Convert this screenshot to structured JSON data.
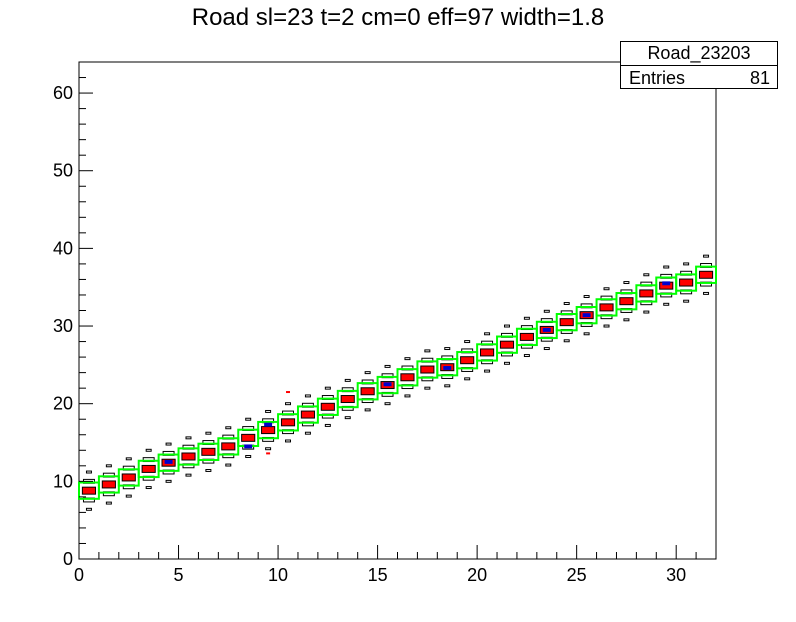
{
  "title": "Road sl=23 t=2 cm=0 eff=97 width=1.8",
  "stats": {
    "name": "Road_23203",
    "entries_label": "Entries",
    "entries_value": "81"
  },
  "chart_data": {
    "type": "heatmap",
    "xlim": [
      0,
      32
    ],
    "ylim": [
      0,
      64
    ],
    "xticks": [
      0,
      5,
      10,
      15,
      20,
      25,
      30
    ],
    "yticks": [
      0,
      10,
      20,
      30,
      40,
      50,
      60
    ],
    "road": [
      {
        "x": 0,
        "y": 8.8
      },
      {
        "x": 1,
        "y": 9.6
      },
      {
        "x": 2,
        "y": 10.5
      },
      {
        "x": 3,
        "y": 11.6
      },
      {
        "x": 4,
        "y": 12.4
      },
      {
        "x": 5,
        "y": 13.2
      },
      {
        "x": 6,
        "y": 13.8
      },
      {
        "x": 7,
        "y": 14.5
      },
      {
        "x": 8,
        "y": 15.6
      },
      {
        "x": 9,
        "y": 16.6
      },
      {
        "x": 10,
        "y": 17.6
      },
      {
        "x": 11,
        "y": 18.6
      },
      {
        "x": 12,
        "y": 19.6
      },
      {
        "x": 13,
        "y": 20.6
      },
      {
        "x": 14,
        "y": 21.6
      },
      {
        "x": 15,
        "y": 22.4
      },
      {
        "x": 16,
        "y": 23.4
      },
      {
        "x": 17,
        "y": 24.4
      },
      {
        "x": 18,
        "y": 24.7
      },
      {
        "x": 19,
        "y": 25.6
      },
      {
        "x": 20,
        "y": 26.6
      },
      {
        "x": 21,
        "y": 27.6
      },
      {
        "x": 22,
        "y": 28.6
      },
      {
        "x": 23,
        "y": 29.5
      },
      {
        "x": 24,
        "y": 30.5
      },
      {
        "x": 25,
        "y": 31.4
      },
      {
        "x": 26,
        "y": 32.4
      },
      {
        "x": 27,
        "y": 33.2
      },
      {
        "x": 28,
        "y": 34.2
      },
      {
        "x": 29,
        "y": 35.2
      },
      {
        "x": 30,
        "y": 35.6
      },
      {
        "x": 31,
        "y": 36.6
      }
    ],
    "hits_blue": [
      {
        "x": 4,
        "y": 12.5
      },
      {
        "x": 8,
        "y": 14.5
      },
      {
        "x": 9,
        "y": 17.3
      },
      {
        "x": 15,
        "y": 22.5
      },
      {
        "x": 18,
        "y": 24.6
      },
      {
        "x": 23,
        "y": 29.5
      },
      {
        "x": 25,
        "y": 31.4
      },
      {
        "x": 29,
        "y": 35.5
      }
    ],
    "outliers": [
      {
        "x": 10,
        "y": 21.5,
        "color": "#ff0000"
      },
      {
        "x": 9,
        "y": 13.6,
        "color": "#ff0000"
      }
    ],
    "colors": {
      "road_outline": "#00ff00",
      "center_fill": "#ff0000",
      "hit_fill": "#0000cc"
    }
  }
}
